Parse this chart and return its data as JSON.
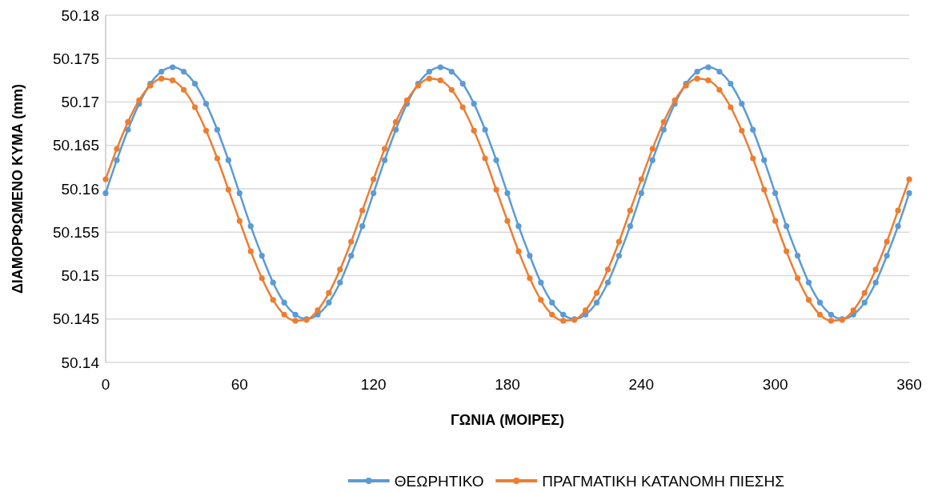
{
  "chart_data": {
    "type": "line",
    "xlabel": "ΓΩΝΙΑ (ΜΟΙΡΕΣ)",
    "ylabel": "ΔΙΑΜΟΡΦΩΜΕΝΟ ΚΥΜΑ (mm)",
    "x": [
      0,
      5,
      10,
      15,
      20,
      25,
      30,
      35,
      40,
      45,
      50,
      55,
      60,
      65,
      70,
      75,
      80,
      85,
      90,
      95,
      100,
      105,
      110,
      115,
      120,
      125,
      130,
      135,
      140,
      145,
      150,
      155,
      160,
      165,
      170,
      175,
      180,
      185,
      190,
      195,
      200,
      205,
      210,
      215,
      220,
      225,
      230,
      235,
      240,
      245,
      250,
      255,
      260,
      265,
      270,
      275,
      280,
      285,
      290,
      295,
      300,
      305,
      310,
      315,
      320,
      325,
      330,
      335,
      340,
      345,
      350,
      355,
      360
    ],
    "series": [
      {
        "name": "ΘΕΩΡΗΤΙΚΟ",
        "color": "#5b9bd5",
        "values": [
          50.1595,
          50.1633,
          50.1668,
          50.1698,
          50.1721,
          50.1735,
          50.174,
          50.1735,
          50.1721,
          50.1698,
          50.1668,
          50.1633,
          50.1595,
          50.1557,
          50.1523,
          50.1492,
          50.1469,
          50.1455,
          50.145,
          50.1455,
          50.1469,
          50.1492,
          50.1523,
          50.1557,
          50.1595,
          50.1633,
          50.1668,
          50.1698,
          50.1721,
          50.1735,
          50.174,
          50.1735,
          50.1721,
          50.1698,
          50.1668,
          50.1633,
          50.1595,
          50.1557,
          50.1523,
          50.1492,
          50.1469,
          50.1455,
          50.145,
          50.1455,
          50.1469,
          50.1492,
          50.1523,
          50.1557,
          50.1595,
          50.1633,
          50.1668,
          50.1698,
          50.1721,
          50.1735,
          50.174,
          50.1735,
          50.1721,
          50.1698,
          50.1668,
          50.1633,
          50.1595,
          50.1557,
          50.1523,
          50.1492,
          50.1469,
          50.1455,
          50.145,
          50.1455,
          50.1469,
          50.1492,
          50.1523,
          50.1557,
          50.1595
        ]
      },
      {
        "name": "ΠΡΑΓΜΑΤΙΚΗ ΚΑΤΑΝΟΜΗ ΠΙΕΣΗΣ",
        "color": "#ed7d31",
        "values": [
          50.1611,
          50.1646,
          50.1677,
          50.1702,
          50.1719,
          50.1727,
          50.1725,
          50.1714,
          50.1694,
          50.1667,
          50.1635,
          50.1599,
          50.1563,
          50.1528,
          50.1497,
          50.1472,
          50.1455,
          50.1448,
          50.1449,
          50.146,
          50.148,
          50.1507,
          50.1539,
          50.1575,
          50.1611,
          50.1646,
          50.1677,
          50.1702,
          50.1719,
          50.1727,
          50.1725,
          50.1714,
          50.1694,
          50.1667,
          50.1635,
          50.1599,
          50.1563,
          50.1528,
          50.1497,
          50.1472,
          50.1455,
          50.1448,
          50.1449,
          50.146,
          50.148,
          50.1507,
          50.1539,
          50.1575,
          50.1611,
          50.1646,
          50.1677,
          50.1702,
          50.1719,
          50.1727,
          50.1725,
          50.1714,
          50.1694,
          50.1667,
          50.1635,
          50.1599,
          50.1563,
          50.1528,
          50.1497,
          50.1472,
          50.1455,
          50.1448,
          50.1449,
          50.146,
          50.148,
          50.1507,
          50.1539,
          50.1575,
          50.1611
        ]
      }
    ],
    "xlim": [
      0,
      360
    ],
    "xticks": [
      0,
      60,
      120,
      180,
      240,
      300,
      360
    ],
    "ylim": [
      50.14,
      50.18
    ],
    "yticks": [
      {
        "value": 50.14,
        "label": "50.14"
      },
      {
        "value": 50.145,
        "label": "50.145"
      },
      {
        "value": 50.15,
        "label": "50.15"
      },
      {
        "value": 50.155,
        "label": "50.155"
      },
      {
        "value": 50.16,
        "label": "50.16"
      },
      {
        "value": 50.165,
        "label": "50.165"
      },
      {
        "value": 50.17,
        "label": "50.17"
      },
      {
        "value": 50.175,
        "label": "50.175"
      },
      {
        "value": 50.18,
        "label": "50.18"
      }
    ],
    "grid": "y",
    "legend": "bottom",
    "marker": "circle",
    "line_style": "solid"
  }
}
